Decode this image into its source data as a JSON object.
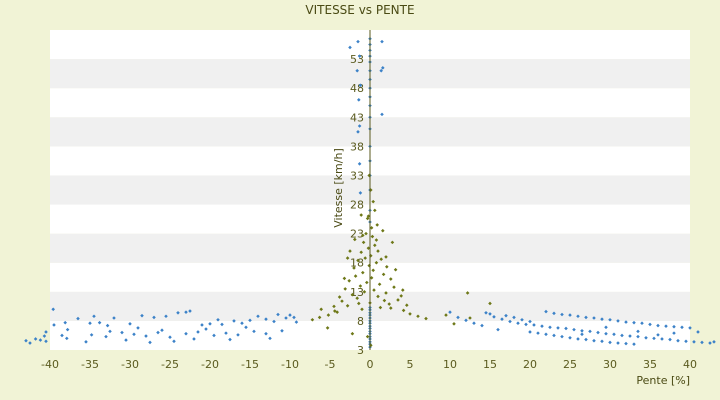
{
  "chart_data": {
    "type": "scatter",
    "title": "VITESSE vs PENTE",
    "xlabel": "Pente [%]",
    "ylabel": "Vitesse [km/h]",
    "xlim": [
      -40,
      40
    ],
    "ylim": [
      3,
      58
    ],
    "x_ticks": [
      -40,
      -35,
      -30,
      -25,
      -20,
      -15,
      -10,
      -5,
      0,
      5,
      10,
      15,
      20,
      25,
      30,
      35,
      40
    ],
    "y_ticks": [
      3,
      8,
      13,
      18,
      23,
      28,
      33,
      38,
      43,
      48,
      53
    ],
    "grid": "horizontal alternating bands",
    "legend": "none",
    "colors": {
      "background": "#f1f3d6",
      "band_light": "#ffffff",
      "band_dark": "#f0f0f0",
      "series_blue": "#3c82c8",
      "series_olive": "#6e7818",
      "axis_text": "#5a5a1e"
    },
    "series": [
      {
        "color": "#3c82c8",
        "marker": "diamond",
        "points": [
          [
            -43,
            4.6
          ],
          [
            -42.5,
            4.2
          ],
          [
            -41.8,
            4.9
          ],
          [
            -41.2,
            4.7
          ],
          [
            -40.7,
            5.4
          ],
          [
            -40.5,
            4.5
          ],
          [
            -40.5,
            6.1
          ],
          [
            -39.6,
            10
          ],
          [
            -39.5,
            7.3
          ],
          [
            -38.5,
            5.5
          ],
          [
            -38.1,
            7.7
          ],
          [
            -37.9,
            5
          ],
          [
            -37.8,
            6.5
          ],
          [
            -36.5,
            8.4
          ],
          [
            -35,
            7.6
          ],
          [
            -34.5,
            8.8
          ],
          [
            -33.8,
            7.7
          ],
          [
            -32.8,
            7.2
          ],
          [
            -32,
            8.5
          ],
          [
            -30,
            7.5
          ],
          [
            -28.5,
            8.9
          ],
          [
            -27,
            8.6
          ],
          [
            -25.5,
            8.8
          ],
          [
            -24,
            9.4
          ],
          [
            -23,
            9.5
          ],
          [
            -22.5,
            9.7
          ],
          [
            -21,
            7.3
          ],
          [
            -20,
            7.5
          ],
          [
            -19,
            8.2
          ],
          [
            -18.5,
            7.4
          ],
          [
            -17,
            8
          ],
          [
            -16,
            7.6
          ],
          [
            -15,
            8.1
          ],
          [
            -14,
            8.8
          ],
          [
            -13,
            8.3
          ],
          [
            -12,
            7.9
          ],
          [
            -11.5,
            9.1
          ],
          [
            -10.5,
            8.5
          ],
          [
            -10,
            9
          ],
          [
            -9.5,
            8.6
          ],
          [
            -9.2,
            7.8
          ],
          [
            -34.8,
            5.6
          ],
          [
            -33,
            5.3
          ],
          [
            -31,
            6
          ],
          [
            -29.5,
            5.7
          ],
          [
            -28,
            5.4
          ],
          [
            -26.5,
            6
          ],
          [
            -25,
            5.2
          ],
          [
            -23,
            5.8
          ],
          [
            -21.5,
            6.1
          ],
          [
            -19.5,
            5.5
          ],
          [
            -18,
            5.9
          ],
          [
            -16.5,
            5.6
          ],
          [
            -14.5,
            6.2
          ],
          [
            -13,
            5.8
          ],
          [
            -11,
            6.3
          ],
          [
            -35.5,
            4.4
          ],
          [
            -30.5,
            4.7
          ],
          [
            -24.5,
            4.5
          ],
          [
            -17.5,
            4.8
          ],
          [
            -12.5,
            5
          ],
          [
            -22,
            4.9
          ],
          [
            -27.5,
            4.3
          ],
          [
            -26,
            6.4
          ],
          [
            -20.5,
            6.6
          ],
          [
            -15.5,
            6.9
          ],
          [
            -29,
            6.8
          ],
          [
            -32.5,
            6.2
          ],
          [
            0,
            3.5
          ],
          [
            0,
            4
          ],
          [
            0,
            4.4
          ],
          [
            0,
            4.9
          ],
          [
            0,
            5.3
          ],
          [
            0,
            5.8
          ],
          [
            0,
            6.2
          ],
          [
            0,
            6.7
          ],
          [
            0,
            7.1
          ],
          [
            0,
            7.6
          ],
          [
            0,
            8
          ],
          [
            0,
            8.5
          ],
          [
            0,
            9
          ],
          [
            0,
            9.4
          ],
          [
            0,
            9.9
          ],
          [
            0,
            10.3
          ],
          [
            0,
            25
          ],
          [
            0,
            27
          ],
          [
            0,
            30.5
          ],
          [
            0,
            33
          ],
          [
            0,
            35.5
          ],
          [
            0,
            38
          ],
          [
            0,
            41
          ],
          [
            0,
            43
          ],
          [
            0,
            45
          ],
          [
            0,
            46.5
          ],
          [
            0,
            48
          ],
          [
            0,
            49.5
          ],
          [
            0,
            51
          ],
          [
            0,
            52.5
          ],
          [
            0,
            53.5
          ],
          [
            0,
            54.5
          ],
          [
            0,
            55.5
          ],
          [
            0,
            56.5
          ],
          [
            -1.5,
            56
          ],
          [
            -1.3,
            53.5
          ],
          [
            -1.6,
            51
          ],
          [
            -1.2,
            48.5
          ],
          [
            -1.4,
            46
          ],
          [
            -1.3,
            41.5
          ],
          [
            -1.5,
            40.5
          ],
          [
            -1.3,
            35
          ],
          [
            -1.2,
            30
          ],
          [
            1.5,
            56
          ],
          [
            1.6,
            51.5
          ],
          [
            1.4,
            51
          ],
          [
            1.5,
            43.5
          ],
          [
            -2.5,
            55
          ],
          [
            10,
            9.5
          ],
          [
            11,
            8.6
          ],
          [
            12,
            8.1
          ],
          [
            13,
            7.6
          ],
          [
            14,
            7.2
          ],
          [
            15,
            9.2
          ],
          [
            15.5,
            8.7
          ],
          [
            16.5,
            8.3
          ],
          [
            17.5,
            7.9
          ],
          [
            18.5,
            7.6
          ],
          [
            19.5,
            7.4
          ],
          [
            20.5,
            7.3
          ],
          [
            21.5,
            7.1
          ],
          [
            22.5,
            6.9
          ],
          [
            23.5,
            6.8
          ],
          [
            24.5,
            6.7
          ],
          [
            25.5,
            6.5
          ],
          [
            26.5,
            6.3
          ],
          [
            27.5,
            6.2
          ],
          [
            28.5,
            6
          ],
          [
            29.5,
            5.8
          ],
          [
            30.5,
            5.7
          ],
          [
            31.5,
            5.5
          ],
          [
            32.5,
            5.4
          ],
          [
            33.5,
            5.3
          ],
          [
            34.5,
            5.1
          ],
          [
            35.5,
            5
          ],
          [
            36.5,
            4.9
          ],
          [
            37.5,
            4.8
          ],
          [
            38.5,
            4.6
          ],
          [
            39.5,
            4.5
          ],
          [
            40.5,
            4.4
          ],
          [
            41.5,
            4.3
          ],
          [
            42.5,
            4.2
          ],
          [
            43,
            4.4
          ],
          [
            22,
            9.6
          ],
          [
            23,
            9.3
          ],
          [
            24,
            9.1
          ],
          [
            25,
            9
          ],
          [
            26,
            8.8
          ],
          [
            27,
            8.6
          ],
          [
            28,
            8.5
          ],
          [
            29,
            8.3
          ],
          [
            30,
            8.2
          ],
          [
            31,
            8
          ],
          [
            32,
            7.8
          ],
          [
            33,
            7.7
          ],
          [
            34,
            7.6
          ],
          [
            35,
            7.4
          ],
          [
            36,
            7.2
          ],
          [
            37,
            7.1
          ],
          [
            38,
            7
          ],
          [
            39,
            6.9
          ],
          [
            40,
            6.8
          ],
          [
            20,
            6.1
          ],
          [
            21,
            5.9
          ],
          [
            22,
            5.7
          ],
          [
            23,
            5.5
          ],
          [
            24,
            5.3
          ],
          [
            25,
            5.1
          ],
          [
            26,
            4.9
          ],
          [
            27,
            4.8
          ],
          [
            28,
            4.6
          ],
          [
            29,
            4.5
          ],
          [
            30,
            4.3
          ],
          [
            31,
            4.2
          ],
          [
            32,
            4.1
          ],
          [
            33,
            4
          ],
          [
            17,
            8.9
          ],
          [
            18,
            8.6
          ],
          [
            19,
            8.2
          ],
          [
            20,
            7.9
          ],
          [
            14.5,
            9.4
          ],
          [
            16,
            6.5
          ],
          [
            26.5,
            5.7
          ],
          [
            29.5,
            6.9
          ],
          [
            33.5,
            6.2
          ],
          [
            36,
            5.6
          ],
          [
            38,
            5.9
          ],
          [
            41,
            6.1
          ]
        ]
      },
      {
        "color": "#6e7818",
        "marker": "diamond",
        "points": [
          [
            -0.5,
            23
          ],
          [
            0.3,
            22.5
          ],
          [
            -0.8,
            21.5
          ],
          [
            0.6,
            21
          ],
          [
            -0.2,
            20.5
          ],
          [
            1,
            20
          ],
          [
            -1.1,
            19.8
          ],
          [
            0.1,
            19.2
          ],
          [
            -0.6,
            18.8
          ],
          [
            1.4,
            18.6
          ],
          [
            -1.5,
            18.4
          ],
          [
            0.8,
            18
          ],
          [
            -0.1,
            17.5
          ],
          [
            2.1,
            17.3
          ],
          [
            -2,
            17.1
          ],
          [
            0.4,
            16.7
          ],
          [
            -0.9,
            16.3
          ],
          [
            1.7,
            16
          ],
          [
            -1.8,
            15.7
          ],
          [
            0.2,
            15.4
          ],
          [
            2.6,
            15.2
          ],
          [
            -2.6,
            14.9
          ],
          [
            -0.4,
            14.6
          ],
          [
            1.2,
            14.3
          ],
          [
            -1.2,
            14
          ],
          [
            3,
            13.8
          ],
          [
            -3.1,
            13.5
          ],
          [
            0.5,
            13.3
          ],
          [
            -0.7,
            13
          ],
          [
            2,
            12.8
          ],
          [
            -2.2,
            12.5
          ],
          [
            1,
            12.2
          ],
          [
            -1.6,
            11.9
          ],
          [
            3.5,
            11.6
          ],
          [
            -3.5,
            11.4
          ],
          [
            0,
            11.1
          ],
          [
            2.4,
            10.9
          ],
          [
            -2.8,
            10.6
          ],
          [
            1.3,
            10.3
          ],
          [
            -1,
            10
          ],
          [
            4.2,
            9.8
          ],
          [
            -4.1,
            9.5
          ],
          [
            5,
            9.2
          ],
          [
            -5.2,
            9
          ],
          [
            6,
            8.8
          ],
          [
            -6.3,
            8.6
          ],
          [
            7,
            8.4
          ],
          [
            -7.2,
            8.2
          ],
          [
            -4.5,
            10.5
          ],
          [
            4.6,
            10.7
          ],
          [
            -3.8,
            12.1
          ],
          [
            3.9,
            12.3
          ],
          [
            0.9,
            24.5
          ],
          [
            -0.3,
            25.6
          ],
          [
            0.6,
            27
          ],
          [
            -1.9,
            22
          ],
          [
            2.8,
            21.5
          ],
          [
            2,
            19
          ],
          [
            -2.5,
            20
          ],
          [
            -0.2,
            26
          ],
          [
            0.4,
            28.5
          ],
          [
            0.1,
            30.5
          ],
          [
            -0.1,
            33
          ],
          [
            12.2,
            12.8
          ],
          [
            15,
            11
          ],
          [
            12.5,
            8.5
          ],
          [
            10.5,
            7.5
          ],
          [
            9.5,
            9
          ],
          [
            -5.3,
            6.8
          ],
          [
            -2.2,
            5.8
          ],
          [
            -0.3,
            5.3
          ],
          [
            0.1,
            3.8
          ],
          [
            -4.4,
            9.7
          ],
          [
            -6.1,
            10
          ],
          [
            -1.4,
            11
          ],
          [
            1.8,
            11.5
          ],
          [
            2.6,
            10.2
          ],
          [
            4.1,
            13.3
          ],
          [
            -3.2,
            15.3
          ],
          [
            3.2,
            16.8
          ],
          [
            -0.9,
            22.7
          ],
          [
            1.6,
            23.5
          ],
          [
            -2.8,
            18.8
          ],
          [
            0.2,
            24
          ],
          [
            -1.1,
            26.2
          ],
          [
            0.8,
            21.9
          ]
        ]
      }
    ]
  }
}
